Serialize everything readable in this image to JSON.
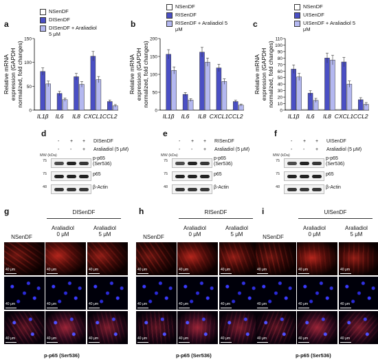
{
  "panels": {
    "a": "a",
    "b": "b",
    "c": "c",
    "d": "d",
    "e": "e",
    "f": "f",
    "g": "g",
    "h": "h",
    "i": "i"
  },
  "colors": {
    "ctrl": "#ffffff",
    "senescent": "#4a4fc4",
    "treated": "#b4b8f0",
    "red_stain": "#b0201c",
    "blue_stain": "#2a2ad8"
  },
  "chart_data": [
    {
      "type": "bar",
      "ylabel": "Relative mRNA expression (GAPDH normalized, fold changes)",
      "ylim": [
        0,
        150
      ],
      "yticks": [
        0,
        50,
        100,
        150
      ],
      "categories": [
        "IL1β",
        "IL6",
        "IL8",
        "CXCL1",
        "CCL2"
      ],
      "series": [
        {
          "name": "NSenDF",
          "values": [
            1,
            1,
            1,
            1,
            1
          ]
        },
        {
          "name": "DISenDF",
          "values": [
            81,
            35,
            70,
            113,
            18
          ]
        },
        {
          "name": "DISenDF + Araliadiol 5 μM",
          "values": [
            55,
            22,
            54,
            64,
            9
          ]
        }
      ]
    },
    {
      "type": "bar",
      "ylabel": "Relative mRNA expression (GAPDH normalized, fold changes)",
      "ylim": [
        0,
        200
      ],
      "yticks": [
        0,
        50,
        100,
        150,
        200
      ],
      "categories": [
        "IL1β",
        "IL6",
        "IL8",
        "CXCL1",
        "CCL2"
      ],
      "series": [
        {
          "name": "NSenDF",
          "values": [
            1,
            1,
            1,
            1,
            1
          ]
        },
        {
          "name": "RISenDF",
          "values": [
            156,
            44,
            162,
            118,
            24
          ]
        },
        {
          "name": "RISenDF + Araliadiol 5 μM",
          "values": [
            111,
            28,
            134,
            80,
            14
          ]
        }
      ]
    },
    {
      "type": "bar",
      "ylabel": "Relative mRNA expression (GAPDH normalized, fold changes)",
      "ylim": [
        0,
        110
      ],
      "yticks": [
        0,
        10,
        20,
        30,
        40,
        50,
        60,
        70,
        80,
        90,
        100,
        110
      ],
      "categories": [
        "IL1β",
        "IL6",
        "IL8",
        "CXCL1",
        "CCL2"
      ],
      "series": [
        {
          "name": "NSenDF",
          "values": [
            1,
            1,
            1,
            1,
            1
          ]
        },
        {
          "name": "UISenDF",
          "values": [
            63,
            26,
            80,
            74,
            16
          ]
        },
        {
          "name": "UISenDF + Araliadiol 5 μM",
          "values": [
            51,
            15,
            77,
            40,
            9
          ]
        }
      ]
    }
  ],
  "blots": [
    {
      "cond": "DISenDF",
      "rowA": [
        "-",
        "+",
        "+"
      ],
      "rowB": [
        "-",
        "-",
        "+"
      ],
      "treat": "Araliadiol (5 μM)"
    },
    {
      "cond": "RISenDF",
      "rowA": [
        "-",
        "+",
        "+"
      ],
      "rowB": [
        "-",
        "-",
        "+"
      ],
      "treat": "Araliadiol (5 μM)"
    },
    {
      "cond": "UISenDF",
      "rowA": [
        "-",
        "+",
        "+"
      ],
      "rowB": [
        "-",
        "-",
        "+"
      ],
      "treat": "Araliadiol (5 μM)"
    }
  ],
  "blot_labels": {
    "mw": "MW (kDa)",
    "m75a": "75",
    "m75b": "75",
    "m48": "48",
    "p65p": "p-p65\n(Ser536)",
    "p65": "p65",
    "actin": "β-Actin"
  },
  "micro": [
    {
      "group": "DISenDF",
      "col1": "NSenDF",
      "col2": "Araliadiol\n0 μM",
      "col3": "Araliadiol\n5 μM"
    },
    {
      "group": "RISenDF",
      "col1": "NSenDF",
      "col2": "Araliadiol\n0 μM",
      "col3": "Araliadiol\n5 μM"
    },
    {
      "group": "UISenDF",
      "col1": "NSenDF",
      "col2": "Araliadiol\n0 μM",
      "col3": "Araliadiol\n5 μM"
    }
  ],
  "scale_label": "40 μm",
  "caption": "p-p65 (Ser536)"
}
